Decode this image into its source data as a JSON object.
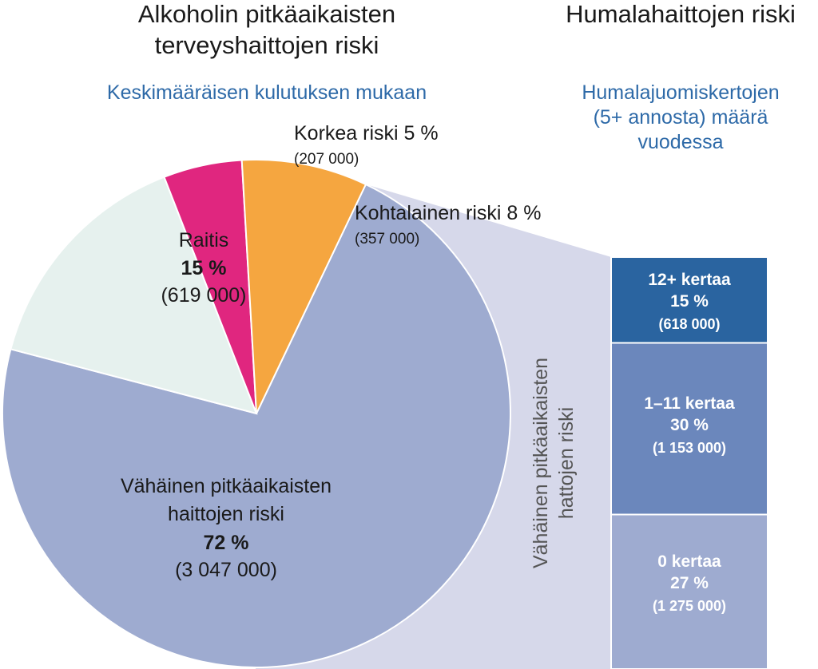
{
  "colors": {
    "raitis": "#e6f1ee",
    "korkea": "#e0267f",
    "kohtalainen": "#f5a640",
    "vahainen": "#9eabd0",
    "band": "#d6d8ea",
    "bar_top": "#2a64a0",
    "bar_mid": "#6b87bc",
    "bar_bottom": "#9eabd0",
    "subtitle": "#2e6aa8"
  },
  "chart_data": [
    {
      "type": "pie",
      "title": "Alkoholin pitkäaikaisten terveyshaittojen riski",
      "title_lines": [
        "Alkoholin pitkäaikaisten",
        "terveyshaittojen riski"
      ],
      "subtitle": "Keskimääräisen kulutuksen mukaan",
      "slices": [
        {
          "key": "raitis",
          "label": "Raitis",
          "percent": 15,
          "percent_label": "15 %",
          "count": "(619 000)"
        },
        {
          "key": "korkea",
          "label": "Korkea riski 5 %",
          "percent": 5,
          "count": "(207 000)"
        },
        {
          "key": "kohtalainen",
          "label": "Kohtalainen riski 8 %",
          "percent": 8,
          "count": "(357 000)"
        },
        {
          "key": "vahainen",
          "label_lines": [
            "Vähäinen pitkäaikaisten",
            "haittojen riski"
          ],
          "percent": 72,
          "percent_label": "72 %",
          "count": "(3 047 000)"
        }
      ]
    },
    {
      "type": "bar",
      "stacked": true,
      "title": "Humalahaittojen riski",
      "subtitle_lines": [
        "Humalajuomiskertojen",
        "(5+ annosta) määrä",
        "vuodessa"
      ],
      "band_label_lines": [
        "Vähäinen pitkäaikaisten",
        "hattojen riski"
      ],
      "segments": [
        {
          "label": "12+ kertaa",
          "percent": 15,
          "percent_label": "15 %",
          "count": "(618 000)"
        },
        {
          "label": "1–11 kertaa",
          "percent": 30,
          "percent_label": "30 %",
          "count": "(1 153 000)"
        },
        {
          "label": "0 kertaa",
          "percent": 27,
          "percent_label": "27 %",
          "count": "(1 275 000)"
        }
      ]
    }
  ]
}
